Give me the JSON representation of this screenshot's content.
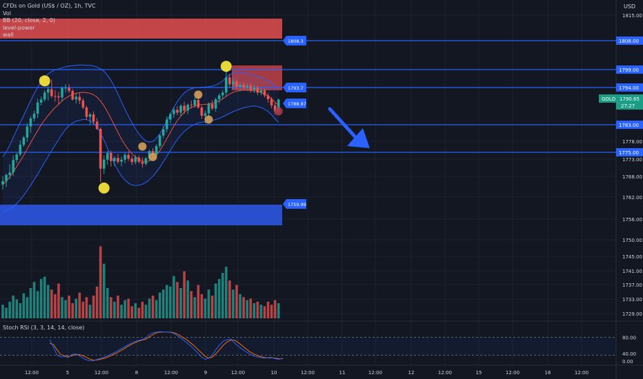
{
  "legend": {
    "title": "CFDs on Gold (US$ / OZ), 1h, TVC",
    "lines": [
      "Vol",
      "BB (20, close, 2, 0)",
      "level-power",
      "wall"
    ]
  },
  "currency": "USD",
  "stoch_label": "Stoch RSI (3, 3, 14, 14, close)",
  "colors": {
    "background": "#131722",
    "up": "#26a69a",
    "down": "#ef5350",
    "bb_band": "#2962ff",
    "bb_basis": "#f0513a",
    "level_line": "#2962ff",
    "wall_red": "#d84a4d",
    "wall_blue": "#2a52d8",
    "marker_yellow": "#ffeb3b",
    "marker_orange": "#d4a056",
    "stoch_k": "#2962ff",
    "stoch_d": "#ff6d00",
    "gold_badge": "#1b9e85",
    "arrow": "#2962ff"
  },
  "price_axis": {
    "ticks": [
      "1815.00",
      "1808.00",
      "1799.00",
      "1794.00",
      "1783.00",
      "1778.00",
      "1775.00",
      "1773.00",
      "1768.00",
      "1762.00",
      "1756.00",
      "1750.00",
      "1745.00",
      "1741.00",
      "1737.00",
      "1733.00",
      "1729.00"
    ],
    "boxed": [
      "1808.00",
      "1799.00",
      "1794.00",
      "1783.00",
      "1775.00"
    ]
  },
  "current_price": {
    "symbol": "GOLD",
    "price": "1790.65",
    "countdown": "27:27"
  },
  "stoch_axis": {
    "ticks": [
      "80.00",
      "40.00",
      "0.00"
    ]
  },
  "time_axis": {
    "ticks": [
      "12:00",
      "5",
      "12:00",
      "8",
      "12:00",
      "9",
      "12:00",
      "10",
      "12:00",
      "11",
      "12:00",
      "12",
      "12:00",
      "15",
      "12:00",
      "16",
      "12:00"
    ]
  },
  "chart_data": {
    "type": "candlestick",
    "price_range": [
      1756,
      1815
    ],
    "levels": [
      {
        "price": 1808,
        "label": "1808.3"
      },
      {
        "price": 1799
      },
      {
        "price": 1794,
        "label": "1793.7"
      },
      {
        "price": 1783
      },
      {
        "price": 1775
      }
    ],
    "current_label": "1788.97",
    "blue_wall_label": "1759.99",
    "red_wall": [
      1809,
      1812
    ],
    "blue_wall": [
      1757,
      1761
    ],
    "stoch_range": [
      0,
      100
    ],
    "stoch_dashed": [
      80,
      20
    ],
    "candles_ohlc": [
      [
        1766.0,
        1768.4,
        1764.6,
        1767.0
      ],
      [
        1767.0,
        1769.2,
        1765.3,
        1768.8
      ],
      [
        1768.8,
        1771.9,
        1767.6,
        1769.5
      ],
      [
        1769.5,
        1774.4,
        1768.5,
        1773.1
      ],
      [
        1773.1,
        1775.1,
        1772.2,
        1774.7
      ],
      [
        1774.7,
        1778.8,
        1774.2,
        1777.5
      ],
      [
        1777.5,
        1780.1,
        1776.9,
        1779.6
      ],
      [
        1779.6,
        1783.7,
        1778.4,
        1782.8
      ],
      [
        1782.8,
        1785.8,
        1781.0,
        1785.1
      ],
      [
        1785.1,
        1787.4,
        1784.3,
        1786.5
      ],
      [
        1786.5,
        1790.8,
        1785.2,
        1789.7
      ],
      [
        1789.7,
        1791.5,
        1788.9,
        1790.6
      ],
      [
        1790.6,
        1793.3,
        1790.0,
        1792.6
      ],
      [
        1792.6,
        1795.5,
        1790.3,
        1793.6
      ],
      [
        1793.6,
        1796.4,
        1791.0,
        1791.6
      ],
      [
        1791.6,
        1793.3,
        1790.0,
        1791.5
      ],
      [
        1791.5,
        1792.8,
        1789.1,
        1791.2
      ],
      [
        1791.2,
        1794.4,
        1790.0,
        1793.9
      ],
      [
        1793.9,
        1795.1,
        1792.6,
        1794.0
      ],
      [
        1794.0,
        1795.0,
        1792.5,
        1793.1
      ],
      [
        1793.1,
        1793.6,
        1790.3,
        1790.6
      ],
      [
        1790.6,
        1792.4,
        1789.4,
        1791.4
      ],
      [
        1791.4,
        1792.5,
        1789.3,
        1790.3
      ],
      [
        1790.3,
        1791.0,
        1787.8,
        1788.3
      ],
      [
        1788.3,
        1788.8,
        1784.8,
        1785.6
      ],
      [
        1785.6,
        1786.8,
        1783.3,
        1786.3
      ],
      [
        1786.3,
        1787.2,
        1783.4,
        1784.2
      ],
      [
        1784.2,
        1785.3,
        1781.8,
        1782.1
      ],
      [
        1782.1,
        1782.5,
        1766.7,
        1770.6
      ],
      [
        1770.6,
        1774.5,
        1769.0,
        1773.2
      ],
      [
        1773.2,
        1775.8,
        1771.7,
        1775.1
      ],
      [
        1775.1,
        1775.8,
        1771.2,
        1772.8
      ],
      [
        1772.8,
        1774.2,
        1771.3,
        1773.7
      ],
      [
        1773.7,
        1774.8,
        1772.0,
        1772.6
      ],
      [
        1772.6,
        1774.1,
        1771.3,
        1773.2
      ],
      [
        1773.2,
        1775.2,
        1772.2,
        1774.6
      ],
      [
        1774.6,
        1775.6,
        1772.8,
        1773.5
      ],
      [
        1773.5,
        1774.3,
        1771.6,
        1772.5
      ],
      [
        1772.5,
        1774.6,
        1771.8,
        1773.8
      ],
      [
        1773.8,
        1774.4,
        1772.1,
        1772.6
      ],
      [
        1772.6,
        1773.9,
        1770.9,
        1772.0
      ],
      [
        1772.0,
        1774.0,
        1771.5,
        1773.6
      ],
      [
        1773.6,
        1776.0,
        1772.8,
        1775.7
      ],
      [
        1775.7,
        1776.5,
        1773.6,
        1774.6
      ],
      [
        1774.6,
        1777.6,
        1773.5,
        1777.1
      ],
      [
        1777.1,
        1780.5,
        1776.5,
        1780.2
      ],
      [
        1780.2,
        1782.9,
        1779.3,
        1782.0
      ],
      [
        1782.0,
        1785.7,
        1781.1,
        1784.8
      ],
      [
        1784.8,
        1786.8,
        1783.7,
        1786.4
      ],
      [
        1786.4,
        1788.4,
        1785.3,
        1787.6
      ],
      [
        1787.6,
        1788.7,
        1786.1,
        1786.8
      ],
      [
        1786.8,
        1789.2,
        1785.8,
        1788.8
      ],
      [
        1788.8,
        1790.0,
        1786.5,
        1787.4
      ],
      [
        1787.4,
        1789.5,
        1786.4,
        1789.1
      ],
      [
        1789.1,
        1790.3,
        1788.0,
        1788.9
      ],
      [
        1788.9,
        1791.2,
        1788.2,
        1790.5
      ],
      [
        1790.5,
        1791.8,
        1787.9,
        1788.3
      ],
      [
        1788.3,
        1788.8,
        1785.1,
        1785.9
      ],
      [
        1785.9,
        1787.4,
        1783.8,
        1786.6
      ],
      [
        1786.6,
        1789.8,
        1785.4,
        1789.3
      ],
      [
        1789.3,
        1790.4,
        1787.5,
        1788.0
      ],
      [
        1788.0,
        1791.1,
        1787.1,
        1790.7
      ],
      [
        1790.7,
        1792.3,
        1789.5,
        1791.8
      ],
      [
        1791.8,
        1793.3,
        1790.7,
        1792.6
      ],
      [
        1792.6,
        1800.0,
        1791.4,
        1797.0
      ],
      [
        1797.0,
        1797.9,
        1794.1,
        1795.0
      ],
      [
        1795.0,
        1796.9,
        1793.7,
        1795.8
      ],
      [
        1795.8,
        1796.5,
        1793.4,
        1794.3
      ],
      [
        1794.3,
        1795.6,
        1793.0,
        1794.9
      ],
      [
        1794.9,
        1795.7,
        1793.2,
        1794.0
      ],
      [
        1794.0,
        1795.3,
        1793.1,
        1794.6
      ],
      [
        1794.6,
        1795.3,
        1792.6,
        1793.4
      ],
      [
        1793.4,
        1794.8,
        1792.5,
        1794.1
      ],
      [
        1794.1,
        1794.7,
        1791.9,
        1792.6
      ],
      [
        1792.6,
        1794.0,
        1791.8,
        1793.3
      ],
      [
        1793.3,
        1793.8,
        1791.2,
        1791.8
      ],
      [
        1791.8,
        1792.5,
        1789.7,
        1790.7
      ],
      [
        1790.7,
        1791.3,
        1788.1,
        1788.9
      ],
      [
        1788.9,
        1789.6,
        1786.3,
        1787.2
      ],
      [
        1787.2,
        1790.9,
        1786.6,
        1790.6
      ]
    ],
    "bb_upper": [
      1774.0,
      1775.5,
      1777.4,
      1779.6,
      1781.8,
      1783.9,
      1786.0,
      1788.2,
      1790.3,
      1792.3,
      1794.2,
      1795.8,
      1797.0,
      1798.0,
      1798.7,
      1799.2,
      1799.5,
      1799.8,
      1800.1,
      1800.3,
      1800.4,
      1800.5,
      1800.6,
      1800.6,
      1800.5,
      1800.5,
      1800.3,
      1800.0,
      1799.5,
      1798.8,
      1797.6,
      1796.1,
      1794.3,
      1792.2,
      1790.0,
      1787.8,
      1785.8,
      1783.9,
      1782.2,
      1780.7,
      1779.5,
      1778.6,
      1778.3,
      1778.5,
      1779.4,
      1780.7,
      1782.4,
      1784.4,
      1786.4,
      1788.3,
      1790.0,
      1791.4,
      1792.5,
      1793.3,
      1793.7,
      1794.0,
      1794.1,
      1794.2,
      1794.2,
      1794.3,
      1794.5,
      1794.8,
      1795.3,
      1796.0,
      1797.0,
      1797.8,
      1798.3,
      1798.5,
      1798.5,
      1798.4,
      1798.2,
      1797.9,
      1797.6,
      1797.3,
      1797.0,
      1796.6,
      1796.0,
      1795.3,
      1794.5,
      1793.7
    ],
    "bb_lower": [
      1758.0,
      1758.3,
      1758.9,
      1759.6,
      1760.5,
      1761.6,
      1762.9,
      1764.3,
      1765.8,
      1767.4,
      1769.0,
      1770.7,
      1772.4,
      1774.1,
      1775.8,
      1777.4,
      1779.0,
      1780.6,
      1782.0,
      1783.0,
      1783.8,
      1784.3,
      1784.6,
      1784.8,
      1784.8,
      1784.4,
      1783.7,
      1782.6,
      1780.9,
      1778.8,
      1776.5,
      1774.2,
      1772.0,
      1770.1,
      1768.5,
      1767.3,
      1766.4,
      1765.9,
      1765.7,
      1765.8,
      1766.1,
      1766.6,
      1767.4,
      1768.4,
      1769.6,
      1771.0,
      1772.6,
      1774.2,
      1775.9,
      1777.5,
      1779.0,
      1780.3,
      1781.4,
      1782.2,
      1782.9,
      1783.4,
      1783.8,
      1784.0,
      1784.2,
      1784.3,
      1784.5,
      1784.8,
      1785.1,
      1785.6,
      1786.1,
      1786.6,
      1787.1,
      1787.5,
      1787.9,
      1788.2,
      1788.4,
      1788.6,
      1788.7,
      1788.6,
      1788.3,
      1787.8,
      1787.1,
      1786.2,
      1785.0,
      1784.0
    ],
    "bb_basis": [
      1766.0,
      1766.9,
      1768.2,
      1769.6,
      1771.2,
      1772.8,
      1774.5,
      1776.3,
      1778.1,
      1779.9,
      1781.6,
      1783.3,
      1784.7,
      1786.0,
      1787.2,
      1788.3,
      1789.2,
      1790.2,
      1791.0,
      1791.6,
      1792.1,
      1792.4,
      1792.6,
      1792.7,
      1792.6,
      1792.4,
      1792.0,
      1791.3,
      1790.2,
      1788.8,
      1787.0,
      1785.1,
      1783.1,
      1781.1,
      1779.2,
      1777.5,
      1776.1,
      1774.9,
      1774.0,
      1773.3,
      1772.8,
      1772.6,
      1772.8,
      1773.4,
      1774.5,
      1775.8,
      1777.5,
      1779.3,
      1781.1,
      1782.9,
      1784.5,
      1785.8,
      1786.9,
      1787.7,
      1788.3,
      1788.7,
      1789.0,
      1789.1,
      1789.2,
      1789.3,
      1789.5,
      1789.8,
      1790.2,
      1790.8,
      1791.5,
      1792.2,
      1792.7,
      1793.0,
      1793.2,
      1793.3,
      1793.3,
      1793.2,
      1793.1,
      1793.0,
      1792.6,
      1792.2,
      1791.6,
      1790.8,
      1789.8,
      1788.9
    ],
    "volume": [
      18,
      14,
      22,
      30,
      25,
      20,
      33,
      28,
      40,
      48,
      36,
      52,
      55,
      44,
      38,
      32,
      46,
      28,
      24,
      30,
      20,
      26,
      34,
      22,
      28,
      18,
      30,
      42,
      95,
      72,
      40,
      28,
      22,
      30,
      18,
      24,
      26,
      16,
      20,
      14,
      22,
      18,
      26,
      30,
      24,
      34,
      38,
      44,
      42,
      56,
      48,
      40,
      62,
      50,
      36,
      28,
      44,
      32,
      26,
      38,
      30,
      46,
      52,
      60,
      68,
      50,
      38,
      44,
      32,
      28,
      24,
      26,
      20,
      22,
      18,
      16,
      22,
      18,
      24,
      20
    ],
    "stoch_k": [
      72,
      48,
      20,
      14,
      16,
      12,
      22,
      24,
      18,
      10,
      4,
      1,
      2,
      6,
      10,
      14,
      20,
      26,
      32,
      40,
      46,
      54,
      60,
      66,
      70,
      72,
      78,
      90,
      96,
      98,
      99,
      98,
      98,
      96,
      90,
      82,
      72,
      62,
      52,
      40,
      28,
      14,
      6,
      10,
      22,
      40,
      56,
      68,
      72,
      74,
      60,
      50,
      40,
      32,
      24,
      18,
      14,
      12,
      10,
      12,
      12,
      8,
      6,
      10
    ],
    "stoch_d": [
      60,
      56,
      38,
      22,
      18,
      16,
      18,
      22,
      22,
      18,
      12,
      6,
      3,
      4,
      7,
      10,
      15,
      21,
      27,
      34,
      41,
      49,
      56,
      62,
      67,
      71,
      74,
      82,
      90,
      96,
      98,
      98,
      98,
      97,
      94,
      88,
      80,
      72,
      62,
      52,
      40,
      28,
      16,
      10,
      14,
      26,
      40,
      55,
      65,
      71,
      70,
      62,
      52,
      42,
      32,
      25,
      19,
      15,
      12,
      11,
      11,
      10,
      8,
      8
    ],
    "markers": [
      {
        "index": 12,
        "price": 1796.0,
        "kind": "yellow"
      },
      {
        "index": 29,
        "price": 1765.0,
        "kind": "yellow"
      },
      {
        "index": 40,
        "price": 1777.0,
        "kind": "orange"
      },
      {
        "index": 43,
        "price": 1774.0,
        "kind": "orange"
      },
      {
        "index": 56,
        "price": 1792.0,
        "kind": "orange"
      },
      {
        "index": 59,
        "price": 1784.8,
        "kind": "orange"
      },
      {
        "index": 64,
        "price": 1800.2,
        "kind": "yellow"
      },
      {
        "index": 79,
        "price": 1787.2,
        "kind": "red"
      }
    ]
  }
}
